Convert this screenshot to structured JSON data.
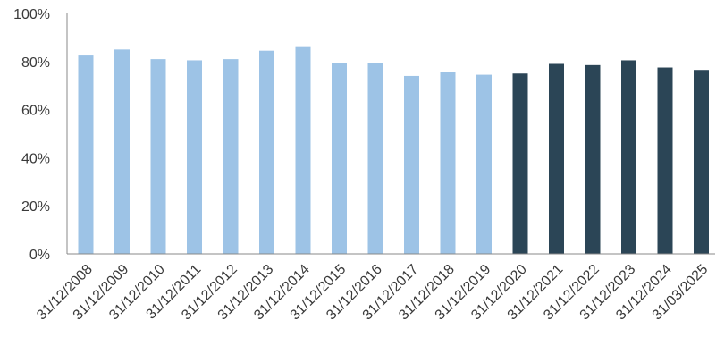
{
  "chart_data": {
    "type": "bar",
    "title": "",
    "xlabel": "",
    "ylabel": "",
    "ylim": [
      0,
      100
    ],
    "yticks": [
      "0%",
      "20%",
      "40%",
      "60%",
      "80%",
      "100%"
    ],
    "ytick_values": [
      0,
      20,
      40,
      60,
      80,
      100
    ],
    "grid": false,
    "legend": "none",
    "categories": [
      "31/12/2008",
      "31/12/2009",
      "31/12/2010",
      "31/12/2011",
      "31/12/2012",
      "31/12/2013",
      "31/12/2014",
      "31/12/2015",
      "31/12/2016",
      "31/12/2017",
      "31/12/2018",
      "31/12/2019",
      "31/12/2020",
      "31/12/2021",
      "31/12/2022",
      "31/12/2023",
      "31/12/2024",
      "31/03/2025"
    ],
    "values": [
      82.5,
      85,
      81,
      80.5,
      81,
      84.5,
      86,
      79.5,
      79.5,
      74,
      75.5,
      74.5,
      75,
      79,
      78.5,
      80.5,
      77.5,
      76.5
    ],
    "colors": {
      "light": "#9dc3e6",
      "dark": "#2b4556"
    },
    "bar_color_groups": [
      "light",
      "light",
      "light",
      "light",
      "light",
      "light",
      "light",
      "light",
      "light",
      "light",
      "light",
      "light",
      "dark",
      "dark",
      "dark",
      "dark",
      "dark",
      "dark"
    ]
  }
}
